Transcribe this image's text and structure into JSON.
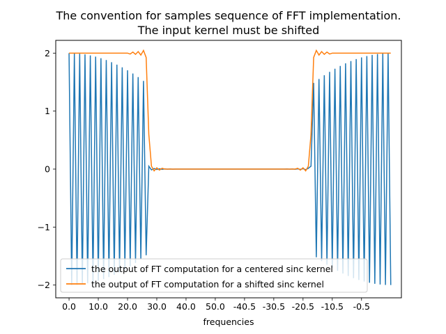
{
  "chart_data": {
    "type": "line",
    "title_line1": "The convention for samples sequence of FFT implementation.",
    "title_line2": "The input kernel must be shifted",
    "xlabel": "frequencies",
    "ylabel": "",
    "xlim": [
      -5,
      125
    ],
    "ylim": [
      -2.22,
      2.22
    ],
    "x_tick_labels": [
      "0.0",
      "10.0",
      "20.0",
      "30.0",
      "40.0",
      "50.0",
      "-40.5",
      "-30.5",
      "-20.5",
      "-10.5",
      "-0.5"
    ],
    "y_tick_labels": [
      "2",
      "1",
      "0",
      "−1",
      "−2"
    ],
    "y_ticks": [
      2,
      1,
      0,
      -1,
      -2
    ],
    "legend_position": "lower-left",
    "legend_frame_color": "#cccccc",
    "series": [
      {
        "name": "the output of FT computation for a centered sinc kernel",
        "color": "#1f77b4",
        "description": "alternating sign samples: +/- envelope ~2 at edges, decreasing toward ~1.5 near index 30 and 90, ~0 between 30 and 90",
        "band_edges": [
          30,
          91
        ],
        "envelope_edge": 2.0,
        "envelope_inner": 1.45
      },
      {
        "name": "the output of FT computation for a shifted sinc kernel",
        "color": "#ff7f0e",
        "description": "rectangle of height 2 for indices 0-30 and 91-121, ~0 between with ripple near edges",
        "band_edges": [
          30,
          91
        ],
        "high_value": 2.0,
        "low_value": 0.0
      }
    ]
  }
}
